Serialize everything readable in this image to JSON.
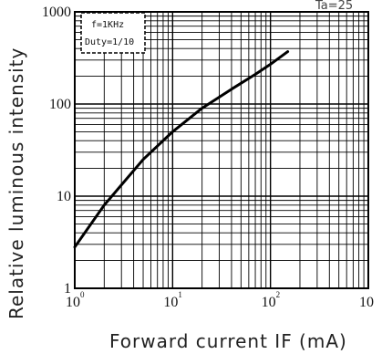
{
  "corner_text": "Ta=25",
  "chart_data": {
    "type": "line",
    "xlabel": "Forward current IF (mA)",
    "ylabel": "Relative luminous intensity",
    "x_scale": "log",
    "y_scale": "log",
    "xlim": [
      1,
      1000
    ],
    "ylim": [
      1,
      1000
    ],
    "grid": true,
    "x_ticks": [
      {
        "base": "10",
        "exp": "0"
      },
      {
        "base": "10",
        "exp": "1"
      },
      {
        "base": "10",
        "exp": "2"
      },
      {
        "base": "10",
        "exp": ""
      }
    ],
    "y_ticks": [
      "1",
      "10",
      "100",
      "1000"
    ],
    "legend_lines": [
      "f=1KHz",
      "Duty=1/10"
    ],
    "legend_position": "top-left",
    "series": [
      {
        "color": "#000000",
        "x": [
          1,
          2,
          5,
          10,
          20,
          40,
          70,
          100,
          150
        ],
        "y": [
          2.8,
          8,
          25,
          50,
          90,
          145,
          210,
          270,
          370
        ]
      }
    ]
  }
}
